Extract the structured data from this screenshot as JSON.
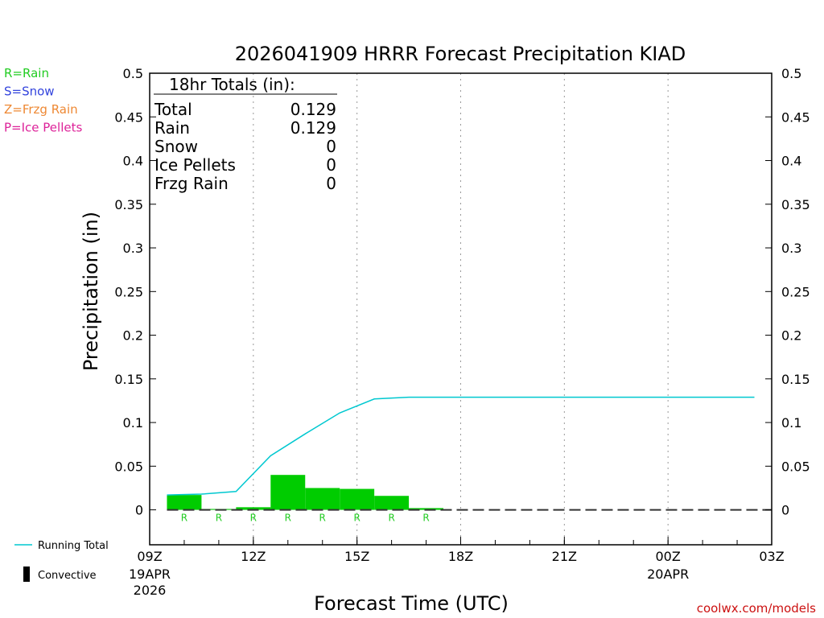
{
  "chart_data": {
    "type": "bar",
    "title": "2026041909 HRRR Forecast Precipitation KIAD",
    "xlabel": "Forecast Time (UTC)",
    "ylabel": "Precipitation (in)",
    "ylim": [
      -0.04,
      0.5
    ],
    "yticks": [
      "0.5",
      "0.45",
      "0.4",
      "0.35",
      "0.3",
      "0.25",
      "0.2",
      "0.15",
      "0.1",
      "0.05",
      "0"
    ],
    "ytick_values": [
      0.5,
      0.45,
      0.4,
      0.35,
      0.3,
      0.25,
      0.2,
      0.15,
      0.1,
      0.05,
      0
    ],
    "xlim_hours": [
      9,
      27
    ],
    "xticks": [
      {
        "hour": 9,
        "label": "09Z",
        "sub1": "19APR",
        "sub2": "2026"
      },
      {
        "hour": 12,
        "label": "12Z",
        "sub1": "",
        "sub2": ""
      },
      {
        "hour": 15,
        "label": "15Z",
        "sub1": "",
        "sub2": ""
      },
      {
        "hour": 18,
        "label": "18Z",
        "sub1": "",
        "sub2": ""
      },
      {
        "hour": 21,
        "label": "21Z",
        "sub1": "",
        "sub2": ""
      },
      {
        "hour": 24,
        "label": "00Z",
        "sub1": "20APR",
        "sub2": ""
      },
      {
        "hour": 27,
        "label": "03Z",
        "sub1": "",
        "sub2": ""
      }
    ],
    "hourly_precip": [
      {
        "hour": 10,
        "value": 0.017,
        "type": "R"
      },
      {
        "hour": 11,
        "value": 0.001,
        "type": "R"
      },
      {
        "hour": 12,
        "value": 0.003,
        "type": "R"
      },
      {
        "hour": 13,
        "value": 0.04,
        "type": "R"
      },
      {
        "hour": 14,
        "value": 0.025,
        "type": "R"
      },
      {
        "hour": 15,
        "value": 0.024,
        "type": "R"
      },
      {
        "hour": 16,
        "value": 0.016,
        "type": "R"
      },
      {
        "hour": 17,
        "value": 0.002,
        "type": "R"
      }
    ],
    "running_total": {
      "x": [
        10,
        11,
        12,
        13,
        14,
        15,
        16,
        17,
        18,
        19,
        20,
        21,
        22,
        23,
        24,
        25,
        26,
        27
      ],
      "y": [
        0.017,
        0.018,
        0.021,
        0.062,
        0.087,
        0.111,
        0.127,
        0.129,
        0.129,
        0.129,
        0.129,
        0.129,
        0.129,
        0.129,
        0.129,
        0.129,
        0.129,
        0.129
      ]
    },
    "totals_box": {
      "header": "18hr Totals (in):",
      "rows": [
        {
          "label": "Total",
          "value": "0.129"
        },
        {
          "label": "Rain",
          "value": "0.129"
        },
        {
          "label": "Snow",
          "value": "0"
        },
        {
          "label": "Ice Pellets",
          "value": "0"
        },
        {
          "label": "Frzg Rain",
          "value": "0"
        }
      ]
    },
    "precip_key": [
      {
        "text": "R=Rain",
        "color": "#22cc22"
      },
      {
        "text": "S=Snow",
        "color": "#3344dd"
      },
      {
        "text": "Z=Frzg Rain",
        "color": "#ee8833"
      },
      {
        "text": "P=Ice Pellets",
        "color": "#dd2299"
      }
    ],
    "legend": [
      {
        "text": "Running Total",
        "color": "#00c8d0"
      },
      {
        "text": "Convective",
        "color": "#000000"
      }
    ],
    "credit": "coolwx.com/models",
    "colors": {
      "bar": "#00cc00",
      "line": "#00c8d0",
      "grid": "#999999",
      "credit": "#cc1111"
    }
  }
}
